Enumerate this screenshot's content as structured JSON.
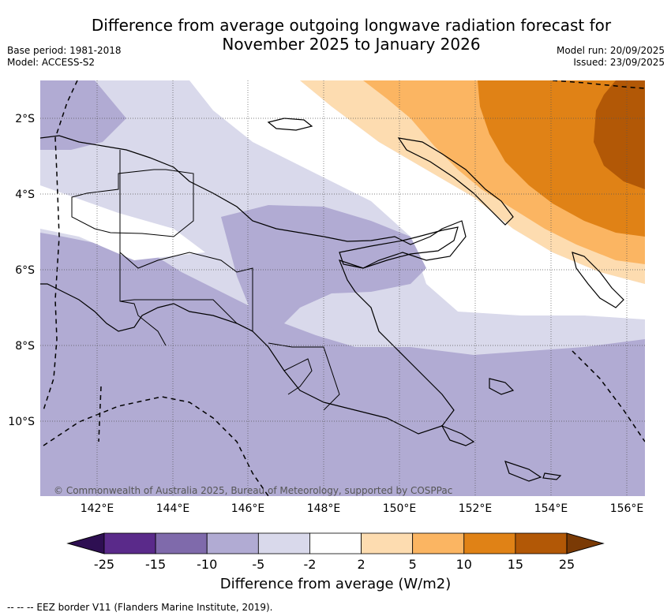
{
  "title": {
    "line1": "Difference from average outgoing longwave radiation forecast for",
    "line2": "November 2025 to January 2026"
  },
  "meta": {
    "base_period": "Base period: 1981-2018",
    "model": "Model: ACCESS-S2",
    "model_run": "Model run: 20/09/2025",
    "issued": "Issued: 23/09/2025"
  },
  "axes": {
    "lat_labels": [
      "2°S",
      "4°S",
      "6°S",
      "8°S",
      "10°S"
    ],
    "lon_labels": [
      "142°E",
      "144°E",
      "146°E",
      "148°E",
      "150°E",
      "152°E",
      "154°E",
      "156°E"
    ]
  },
  "colorbar": {
    "ticks": [
      "-25",
      "-15",
      "-10",
      "-5",
      "-2",
      "2",
      "5",
      "10",
      "15",
      "25"
    ],
    "colors": [
      "#2e0f52",
      "#5a2a8a",
      "#7f6aab",
      "#b1abd3",
      "#d9d9eb",
      "#ffffff",
      "#fddcb0",
      "#fbb562",
      "#e08216",
      "#b25806",
      "#7a3a05"
    ],
    "title": "Difference from average (W/m2)"
  },
  "copyright": "© Commonwealth of Australia 2025, Bureau of Meteorology, supported by COSPPac",
  "footnote": "-- -- -- EEZ border V11 (Flanders Marine Institute, 2019)."
}
